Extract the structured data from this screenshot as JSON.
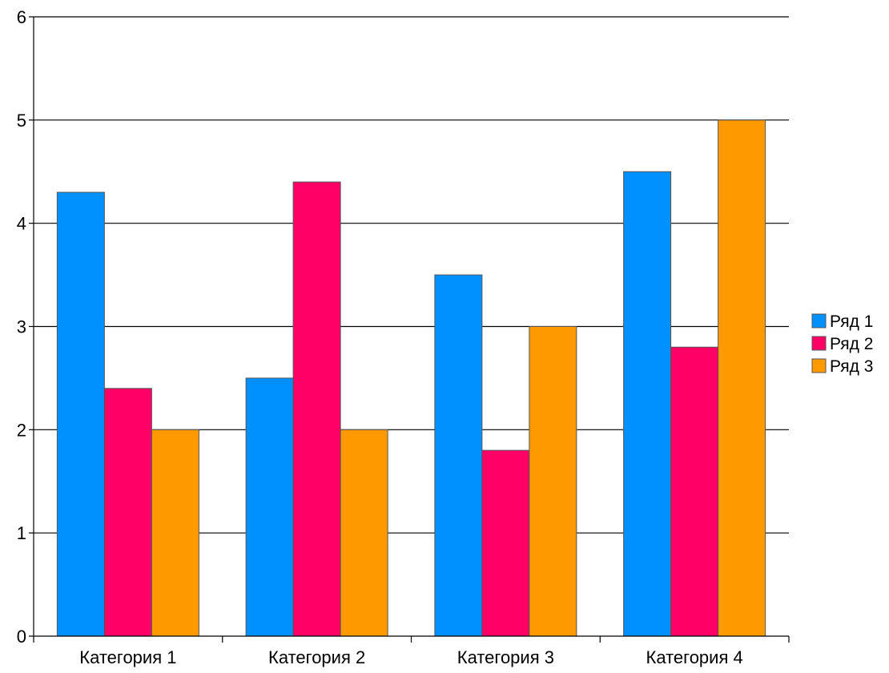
{
  "chart_data": {
    "type": "bar",
    "categories": [
      "Категория 1",
      "Категория 2",
      "Категория 3",
      "Категория 4"
    ],
    "series": [
      {
        "name": "Ряд 1",
        "color": "#0091ff",
        "values": [
          4.3,
          2.5,
          3.5,
          4.5
        ]
      },
      {
        "name": "Ряд 2",
        "color": "#ff0066",
        "values": [
          2.4,
          4.4,
          1.8,
          2.8
        ]
      },
      {
        "name": "Ряд 3",
        "color": "#ff9900",
        "values": [
          2.0,
          2.0,
          3.0,
          5.0
        ]
      }
    ],
    "yticks": [
      "0",
      "1",
      "2",
      "3",
      "4",
      "5",
      "6"
    ],
    "ylim": [
      0,
      6
    ],
    "title": "",
    "xlabel": "",
    "ylabel": "",
    "grid": true,
    "legend": "right"
  }
}
